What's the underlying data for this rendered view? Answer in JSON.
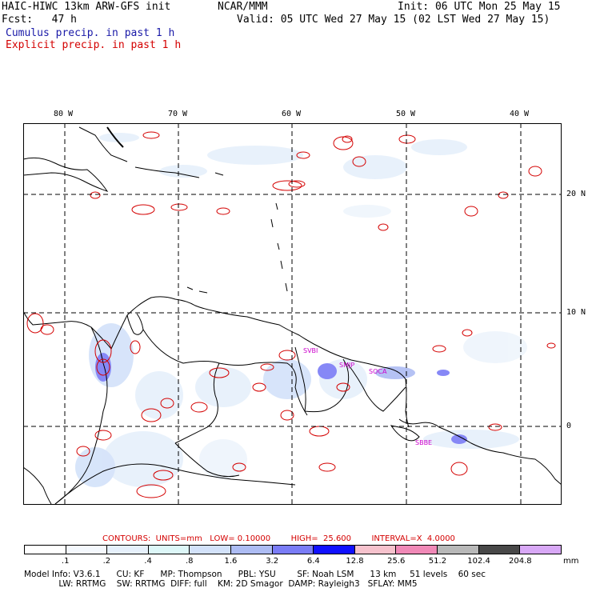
{
  "header": {
    "model": "HAIC-HIWC 13km ARW-GFS init",
    "org": "NCAR/MMM",
    "init": "Init: 06 UTC Mon 25 May 15",
    "fcst": "Fcst:   47 h",
    "valid": "Valid: 05 UTC Wed 27 May 15 (02 LST Wed 27 May 15)",
    "cumulus_label": "Cumulus precip. in past 1 h",
    "explicit_label": "Explicit precip. in past 1 h"
  },
  "colors": {
    "cumulus": "#1a1aa8",
    "explicit": "#d40000",
    "grid": "#000000",
    "station": "#cc00cc"
  },
  "map": {
    "lon_labels": [
      "80 W",
      "70 W",
      "60 W",
      "50 W",
      "40 W"
    ],
    "lat_labels": [
      "20 N",
      "10 N",
      "0"
    ],
    "stations": [
      "SVBI",
      "SMJP",
      "SOCA",
      "SBBE"
    ]
  },
  "contours_line": "CONTOURS:  UNITS=mm   LOW= 0.10000        HIGH=  25.600        INTERVAL=X  4.0000",
  "scale": {
    "unit": "mm",
    "labels": [
      ".1",
      ".2",
      ".4",
      ".8",
      "1.6",
      "3.2",
      "6.4",
      "12.8",
      "25.6",
      "51.2",
      "102.4",
      "204.8"
    ],
    "colors": [
      "#ffffff",
      "#f4f8fd",
      "#e6f0fb",
      "#ddf7f8",
      "#d3e2fa",
      "#adbcf3",
      "#7a7cf6",
      "#1010ff",
      "#f6c2cd",
      "#f089b7",
      "#b8b8b8",
      "#484848",
      "#d8a8f6"
    ]
  },
  "model_info": {
    "line1": "Model Info: V3.6.1      CU: KF      MP: Thompson      PBL: YSU        SF: Noah LSM      13 km     51 levels    60 sec",
    "line2": "             LW: RRTMG    SW: RRTMG  DIFF: full    KM: 2D Smagor  DAMP: Rayleigh3   SFLAY: MM5"
  }
}
